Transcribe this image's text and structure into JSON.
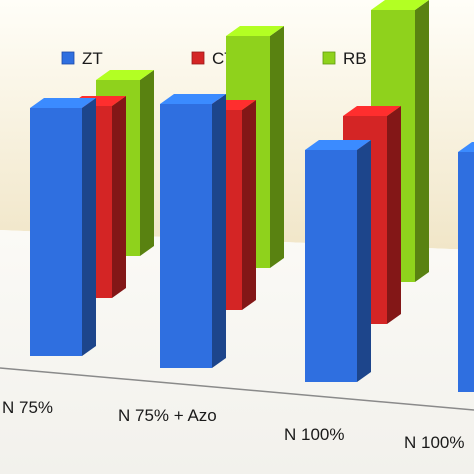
{
  "chart_data": {
    "type": "bar",
    "three_d": true,
    "title": "",
    "xlabel": "",
    "ylabel": "",
    "legend_position": "top",
    "categories": [
      "N 75%",
      "N 75% + Azo",
      "N 100%",
      "N 100%"
    ],
    "series": [
      {
        "name": "ZT",
        "color": "#2f6fe0",
        "values": [
          62,
          66,
          58,
          60
        ]
      },
      {
        "name": "CT",
        "color": "#d42525",
        "values": [
          48,
          50,
          52,
          54
        ]
      },
      {
        "name": "RB",
        "color": "#8fd21c",
        "values": [
          44,
          58,
          68,
          72
        ]
      }
    ],
    "note": "Values are relative estimates; the chart shows no numeric axis.",
    "background_panel_color": "#f3ead2"
  }
}
